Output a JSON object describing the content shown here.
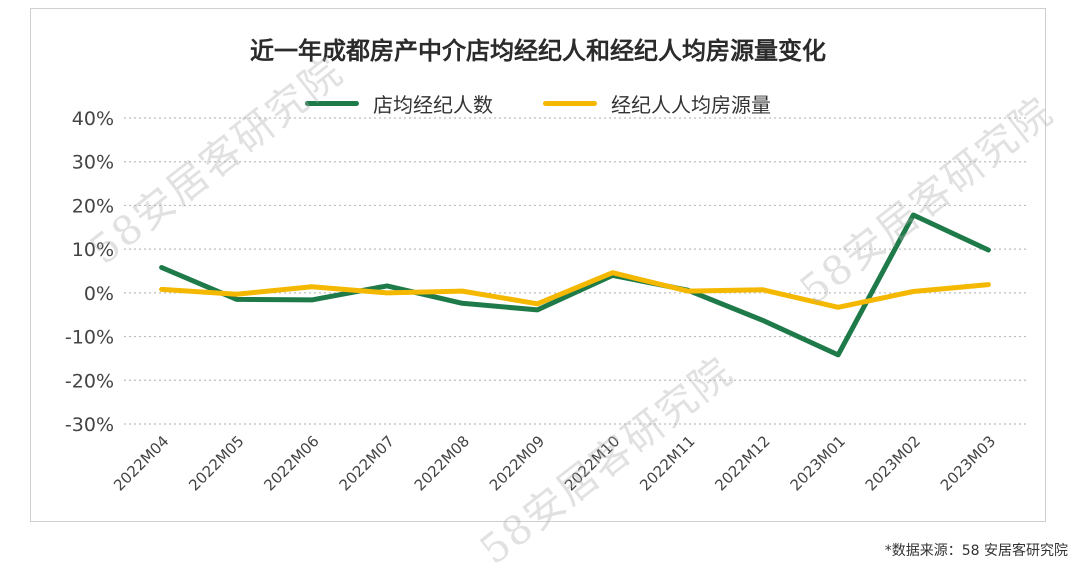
{
  "watermark": "58安居客研究院",
  "footnote": "*数据来源：58 安居客研究院",
  "colors": {
    "green": "#1f7a4a",
    "yellow": "#f5b800",
    "grid": "#bdbdbd",
    "axis_text": "#444444"
  },
  "chart_data": {
    "type": "line",
    "title": "近一年成都房产中介店均经纪人和经纪人均房源量变化",
    "xlabel": "",
    "ylabel": "",
    "ylim": [
      -30,
      40
    ],
    "yticks": [
      40,
      30,
      20,
      10,
      0,
      -10,
      -20,
      -30
    ],
    "ytick_labels": [
      "40%",
      "30%",
      "20%",
      "10%",
      "0%",
      "-10%",
      "-20%",
      "-30%"
    ],
    "grid": true,
    "legend_position": "top-center",
    "categories": [
      "2022M04",
      "2022M05",
      "2022M06",
      "2022M07",
      "2022M08",
      "2022M09",
      "2022M10",
      "2022M11",
      "2022M12",
      "2023M01",
      "2023M02",
      "2023M03"
    ],
    "series": [
      {
        "name": "店均经纪人数",
        "color": "#1f7a4a",
        "values": [
          5.8,
          -1.5,
          -1.6,
          1.6,
          -2.4,
          -3.9,
          4.0,
          0.6,
          -6.3,
          -14.2,
          17.8,
          9.8
        ]
      },
      {
        "name": "经纪人人均房源量",
        "color": "#f5b800",
        "values": [
          0.8,
          -0.3,
          1.4,
          0.0,
          0.4,
          -2.5,
          4.6,
          0.4,
          0.7,
          -3.3,
          0.3,
          1.9
        ]
      }
    ]
  }
}
